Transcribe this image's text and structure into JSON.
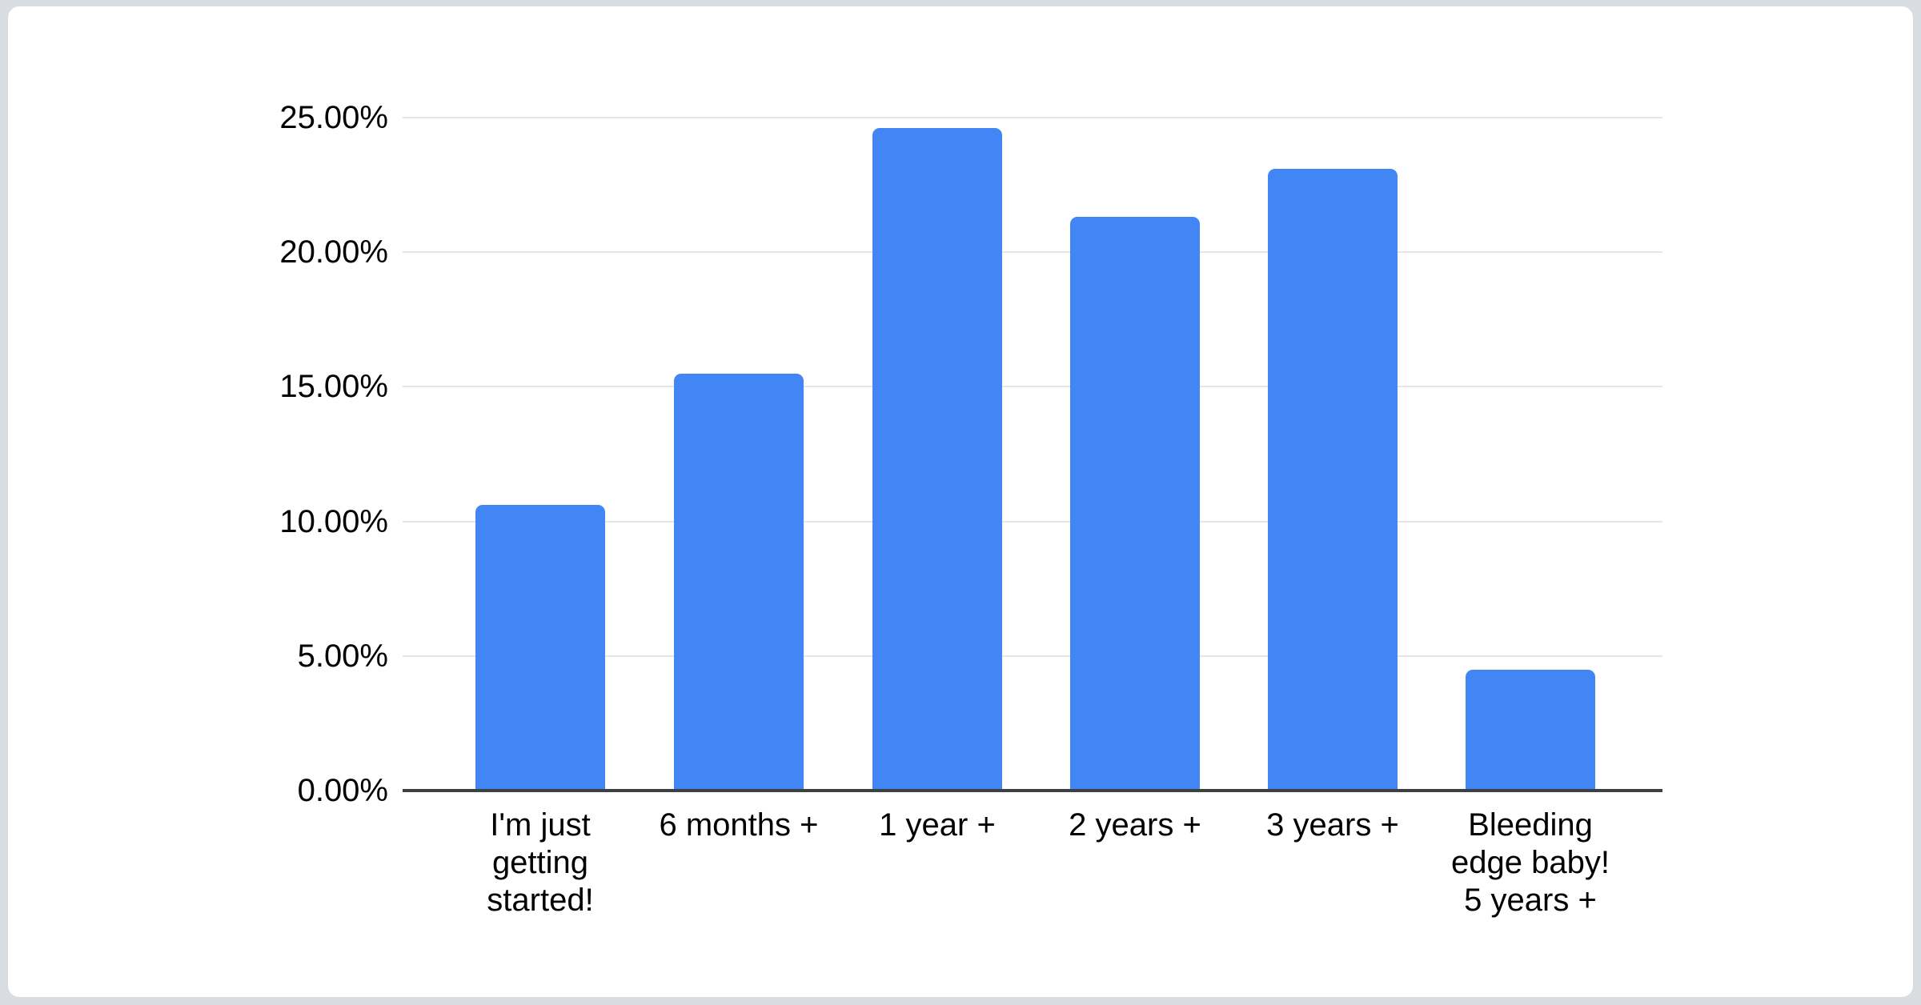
{
  "page": {
    "background_color": "#d9dde1",
    "card_background": "#ffffff",
    "card_border_color": "#d8dce1"
  },
  "chart_data": {
    "type": "bar",
    "title": "",
    "categories": [
      "I'm just getting started!",
      "6 months +",
      "1 year +",
      "2 years +",
      "3 years +",
      "Bleeding edge baby! 5 years +"
    ],
    "label_lines": [
      [
        "I'm just",
        "getting",
        "started!"
      ],
      [
        "6 months +"
      ],
      [
        "1 year +"
      ],
      [
        "2 years +"
      ],
      [
        "3 years +"
      ],
      [
        "Bleeding",
        "edge baby!",
        "5 years +"
      ]
    ],
    "values": [
      10.6,
      15.5,
      24.6,
      21.3,
      23.1,
      4.5
    ],
    "unit": "%",
    "xlabel": "",
    "ylabel": "",
    "ylim": [
      0,
      25
    ],
    "ytick_step": 5,
    "ytick_labels": [
      "0.00%",
      "5.00%",
      "10.00%",
      "15.00%",
      "20.00%",
      "25.00%"
    ],
    "grid": true,
    "legend": "none",
    "bar_color": "#4285f4",
    "gridline_color": "#e6e6e6",
    "axis_line_color": "#3c4043",
    "label_color": "#000000"
  }
}
